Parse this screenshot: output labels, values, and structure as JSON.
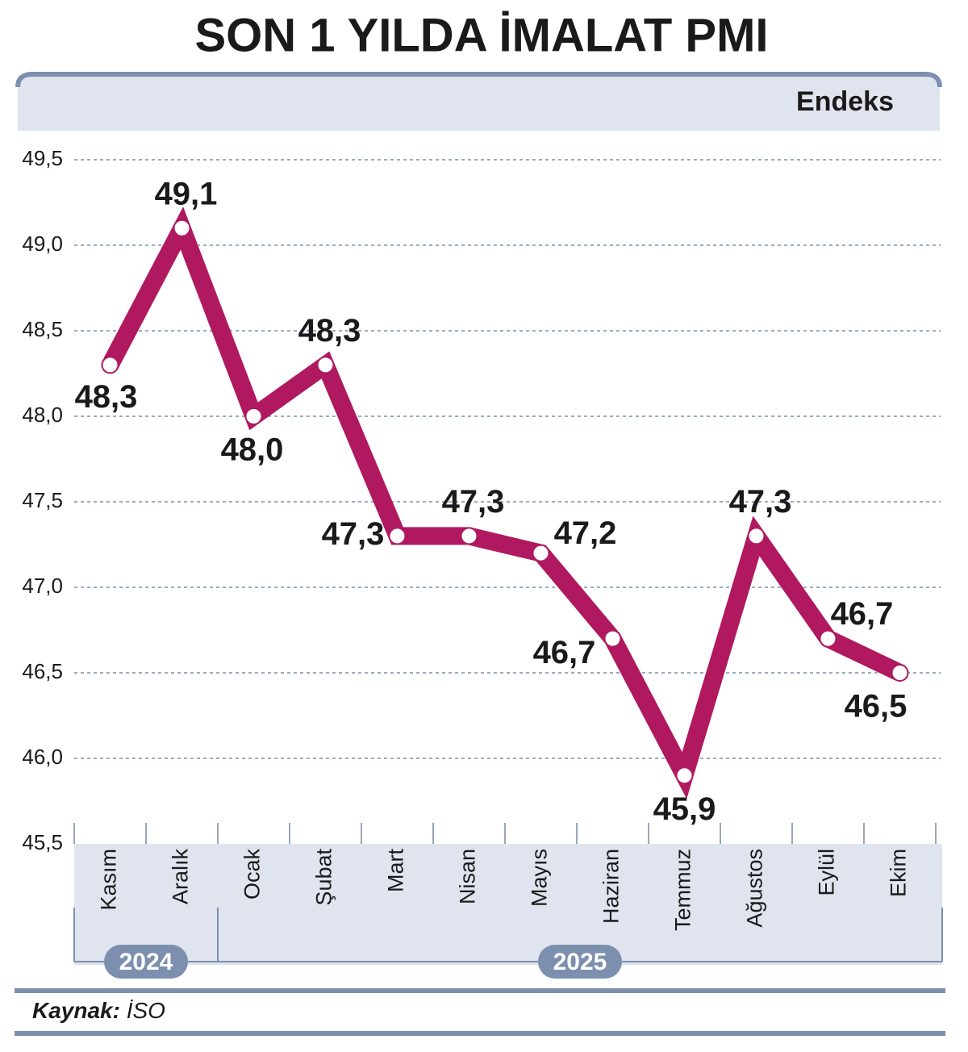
{
  "chart_data": {
    "type": "line",
    "title": "SON 1 YILDA İMALAT PMI",
    "unit_label": "Endeks",
    "categories": [
      "Kasım",
      "Aralık",
      "Ocak",
      "Şubat",
      "Mart",
      "Nisan",
      "Mayıs",
      "Haziran",
      "Temmuz",
      "Ağustos",
      "Eylül",
      "Ekim"
    ],
    "values": [
      48.3,
      49.1,
      48.0,
      48.3,
      47.3,
      47.3,
      47.2,
      46.7,
      45.9,
      47.3,
      46.7,
      46.5
    ],
    "value_labels": [
      "48,3",
      "49,1",
      "48,0",
      "48,3",
      "47,3",
      "47,3",
      "47,2",
      "46,7",
      "45,9",
      "47,3",
      "46,7",
      "46,5"
    ],
    "color": "#b0185f",
    "ylim": [
      45.5,
      49.5
    ],
    "yticks": [
      {
        "value": 45.5,
        "label": "45,5"
      },
      {
        "value": 46.0,
        "label": "46,0"
      },
      {
        "value": 46.5,
        "label": "46,5"
      },
      {
        "value": 47.0,
        "label": "47,0"
      },
      {
        "value": 47.5,
        "label": "47,5"
      },
      {
        "value": 48.0,
        "label": "48,0"
      },
      {
        "value": 48.5,
        "label": "48,5"
      },
      {
        "value": 49.0,
        "label": "49,0"
      },
      {
        "value": 49.5,
        "label": "49,5"
      }
    ],
    "grid": true,
    "groups": [
      {
        "label": "2024",
        "size": 2
      },
      {
        "label": "2025",
        "size": 10
      }
    ],
    "source_label": "Kaynak:",
    "source": "İSO"
  }
}
